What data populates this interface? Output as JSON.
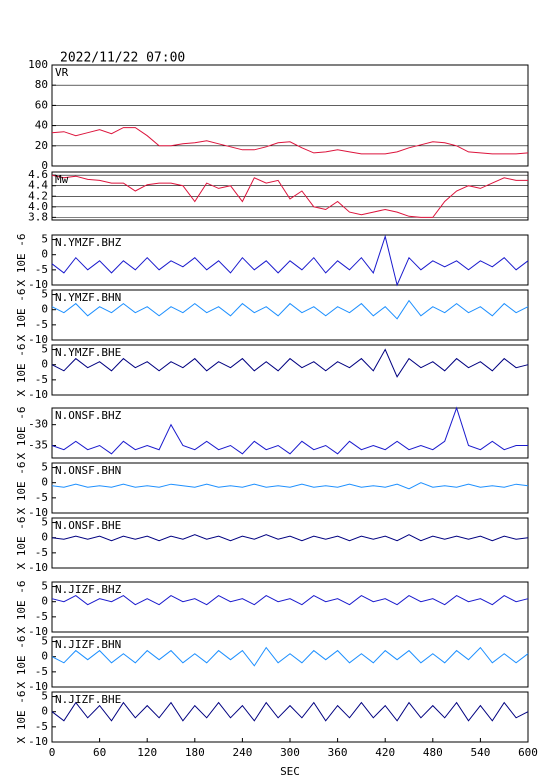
{
  "chart_data": [
    {
      "type": "line",
      "title": "2022/11/22 07:00",
      "label": "VR",
      "xlim": [
        0,
        600
      ],
      "ylim": [
        0,
        100
      ],
      "yticks": [
        0,
        20,
        40,
        60,
        80,
        100
      ],
      "grid": true,
      "x": [
        0,
        15,
        30,
        45,
        60,
        75,
        90,
        105,
        120,
        135,
        150,
        165,
        180,
        195,
        210,
        225,
        240,
        255,
        270,
        285,
        300,
        315,
        330,
        345,
        360,
        375,
        390,
        405,
        420,
        435,
        450,
        465,
        480,
        495,
        510,
        525,
        540,
        555,
        570,
        585,
        600
      ],
      "series": [
        {
          "color": "#dc143c",
          "values": [
            33,
            34,
            30,
            33,
            36,
            32,
            38,
            38,
            30,
            20,
            20,
            22,
            23,
            25,
            22,
            19,
            16,
            16,
            19,
            23,
            24,
            18,
            13,
            14,
            16,
            14,
            12,
            12,
            12,
            14,
            18,
            21,
            24,
            23,
            20,
            14,
            13,
            12,
            12,
            12,
            13
          ]
        }
      ]
    },
    {
      "type": "line",
      "label": "Mw",
      "xlim": [
        0,
        600
      ],
      "ylim": [
        3.75,
        4.66
      ],
      "yticks": [
        3.8,
        {
          "value": 4,
          "label": "4.0"
        },
        4.2,
        4.4,
        4.6
      ],
      "grid": true,
      "x": [
        0,
        15,
        30,
        45,
        60,
        75,
        90,
        105,
        120,
        135,
        150,
        165,
        180,
        195,
        210,
        225,
        240,
        255,
        270,
        285,
        300,
        315,
        330,
        345,
        360,
        375,
        390,
        405,
        420,
        435,
        450,
        465,
        480,
        495,
        510,
        525,
        540,
        555,
        570,
        585,
        600
      ],
      "series": [
        {
          "color": "#dc143c",
          "values": [
            4.6,
            4.55,
            4.58,
            4.52,
            4.5,
            4.45,
            4.45,
            4.3,
            4.42,
            4.45,
            4.45,
            4.4,
            4.1,
            4.45,
            4.35,
            4.4,
            4.1,
            4.55,
            4.45,
            4.5,
            4.15,
            4.3,
            4.0,
            3.95,
            4.1,
            3.9,
            3.85,
            3.9,
            3.95,
            3.9,
            3.82,
            3.8,
            3.8,
            4.1,
            4.3,
            4.4,
            4.35,
            4.45,
            4.55,
            4.5,
            4.5
          ]
        }
      ]
    },
    {
      "type": "line",
      "label": "N.YMZF.BHZ",
      "ylabel": "X 10E -6",
      "xlim": [
        0,
        600
      ],
      "ylim": [
        -10,
        6.5
      ],
      "yticks": [
        -10,
        -5,
        0,
        5
      ],
      "grid": false,
      "x": [
        0,
        15,
        30,
        45,
        60,
        75,
        90,
        105,
        120,
        135,
        150,
        165,
        180,
        195,
        210,
        225,
        240,
        255,
        270,
        285,
        300,
        315,
        330,
        345,
        360,
        375,
        390,
        405,
        420,
        435,
        450,
        465,
        480,
        495,
        510,
        525,
        540,
        555,
        570,
        585,
        600
      ],
      "series": [
        {
          "color": "#1a1acd",
          "values": [
            -3,
            -6,
            -1,
            -5,
            -2,
            -6,
            -2,
            -5,
            -1,
            -5,
            -2,
            -4,
            -1,
            -5,
            -2,
            -6,
            -1,
            -5,
            -2,
            -6,
            -2,
            -5,
            -1,
            -6,
            -2,
            -5,
            -1,
            -6,
            6,
            -10,
            -1,
            -5,
            -2,
            -4,
            -2,
            -5,
            -2,
            -4,
            -1,
            -5,
            -2
          ]
        }
      ]
    },
    {
      "type": "line",
      "label": "N.YMZF.BHN",
      "ylabel": "X 10E -6",
      "xlim": [
        0,
        600
      ],
      "ylim": [
        -10,
        6.5
      ],
      "yticks": [
        -10,
        -5,
        0,
        5
      ],
      "grid": false,
      "x": [
        0,
        15,
        30,
        45,
        60,
        75,
        90,
        105,
        120,
        135,
        150,
        165,
        180,
        195,
        210,
        225,
        240,
        255,
        270,
        285,
        300,
        315,
        330,
        345,
        360,
        375,
        390,
        405,
        420,
        435,
        450,
        465,
        480,
        495,
        510,
        525,
        540,
        555,
        570,
        585,
        600
      ],
      "series": [
        {
          "color": "#1e90ff",
          "values": [
            1,
            -1,
            2,
            -2,
            1,
            -1,
            2,
            -1,
            1,
            -2,
            1,
            -1,
            2,
            -1,
            1,
            -2,
            2,
            -1,
            1,
            -2,
            2,
            -1,
            1,
            -2,
            1,
            -1,
            2,
            -2,
            1,
            -3,
            3,
            -2,
            1,
            -1,
            2,
            -1,
            1,
            -2,
            2,
            -1,
            1
          ]
        }
      ]
    },
    {
      "type": "line",
      "label": "N.YMZF.BHE",
      "ylabel": "X 10E -6",
      "xlim": [
        0,
        600
      ],
      "ylim": [
        -10,
        6.5
      ],
      "yticks": [
        -10,
        -5,
        0,
        5
      ],
      "grid": false,
      "x": [
        0,
        15,
        30,
        45,
        60,
        75,
        90,
        105,
        120,
        135,
        150,
        165,
        180,
        195,
        210,
        225,
        240,
        255,
        270,
        285,
        300,
        315,
        330,
        345,
        360,
        375,
        390,
        405,
        420,
        435,
        450,
        465,
        480,
        495,
        510,
        525,
        540,
        555,
        570,
        585,
        600
      ],
      "series": [
        {
          "color": "#000080",
          "values": [
            0,
            -2,
            2,
            -1,
            1,
            -2,
            2,
            -1,
            1,
            -2,
            1,
            -1,
            2,
            -2,
            1,
            -1,
            2,
            -2,
            1,
            -2,
            2,
            -1,
            1,
            -2,
            1,
            -1,
            2,
            -2,
            5,
            -4,
            2,
            -1,
            1,
            -2,
            2,
            -1,
            1,
            -2,
            2,
            -1,
            0
          ]
        }
      ]
    },
    {
      "type": "line",
      "label": "N.ONSF.BHZ",
      "ylabel": "X 10E -6",
      "xlim": [
        0,
        600
      ],
      "ylim": [
        -38,
        -26
      ],
      "yticks": [
        -35,
        -30
      ],
      "grid": false,
      "x": [
        0,
        15,
        30,
        45,
        60,
        75,
        90,
        105,
        120,
        135,
        150,
        165,
        180,
        195,
        210,
        225,
        240,
        255,
        270,
        285,
        300,
        315,
        330,
        345,
        360,
        375,
        390,
        405,
        420,
        435,
        450,
        465,
        480,
        495,
        510,
        525,
        540,
        555,
        570,
        585,
        600
      ],
      "series": [
        {
          "color": "#1a1acd",
          "values": [
            -35,
            -36,
            -34,
            -36,
            -35,
            -37,
            -34,
            -36,
            -35,
            -36,
            -30,
            -35,
            -36,
            -34,
            -36,
            -35,
            -37,
            -34,
            -36,
            -35,
            -37,
            -34,
            -36,
            -35,
            -37,
            -34,
            -36,
            -35,
            -36,
            -34,
            -36,
            -35,
            -36,
            -34,
            -26,
            -35,
            -36,
            -34,
            -36,
            -35,
            -35
          ]
        }
      ]
    },
    {
      "type": "line",
      "label": "N.ONSF.BHN",
      "ylabel": "X 10E -6",
      "xlim": [
        0,
        600
      ],
      "ylim": [
        -10,
        6.5
      ],
      "yticks": [
        -10,
        -5,
        0,
        5
      ],
      "grid": false,
      "x": [
        0,
        15,
        30,
        45,
        60,
        75,
        90,
        105,
        120,
        135,
        150,
        165,
        180,
        195,
        210,
        225,
        240,
        255,
        270,
        285,
        300,
        315,
        330,
        345,
        360,
        375,
        390,
        405,
        420,
        435,
        450,
        465,
        480,
        495,
        510,
        525,
        540,
        555,
        570,
        585,
        600
      ],
      "series": [
        {
          "color": "#1e90ff",
          "values": [
            -1,
            -1.5,
            -0.5,
            -1.5,
            -1,
            -1.5,
            -0.5,
            -1.5,
            -1,
            -1.5,
            -0.5,
            -1,
            -1.5,
            -0.5,
            -1.5,
            -1,
            -1.5,
            -0.5,
            -1.5,
            -1,
            -1.5,
            -0.5,
            -1.5,
            -1,
            -1.5,
            -0.5,
            -1.5,
            -1,
            -1.5,
            -0.5,
            -2,
            0,
            -1.5,
            -1,
            -1.5,
            -0.5,
            -1.5,
            -1,
            -1.5,
            -0.5,
            -1
          ]
        }
      ]
    },
    {
      "type": "line",
      "label": "N.ONSF.BHE",
      "ylabel": "X 10E -6",
      "xlim": [
        0,
        600
      ],
      "ylim": [
        -10,
        6.5
      ],
      "yticks": [
        -10,
        -5,
        0,
        5
      ],
      "grid": false,
      "x": [
        0,
        15,
        30,
        45,
        60,
        75,
        90,
        105,
        120,
        135,
        150,
        165,
        180,
        195,
        210,
        225,
        240,
        255,
        270,
        285,
        300,
        315,
        330,
        345,
        360,
        375,
        390,
        405,
        420,
        435,
        450,
        465,
        480,
        495,
        510,
        525,
        540,
        555,
        570,
        585,
        600
      ],
      "series": [
        {
          "color": "#000080",
          "values": [
            0,
            -0.5,
            0.5,
            -0.5,
            0.5,
            -1,
            0.5,
            -0.5,
            0.5,
            -1,
            0.5,
            -0.5,
            1,
            -0.5,
            0.5,
            -1,
            0.5,
            -0.5,
            1,
            -0.5,
            0.5,
            -1,
            0.5,
            -0.5,
            0.5,
            -1,
            0.5,
            -0.5,
            0.5,
            -1,
            1,
            -1,
            0.5,
            -0.5,
            0.5,
            -0.5,
            0.5,
            -1,
            0.5,
            -0.5,
            0
          ]
        }
      ]
    },
    {
      "type": "line",
      "label": "N.JIZF.BHZ",
      "ylabel": "X 10E -6",
      "xlim": [
        0,
        600
      ],
      "ylim": [
        -10,
        6.5
      ],
      "yticks": [
        -10,
        -5,
        0,
        5
      ],
      "grid": false,
      "x": [
        0,
        15,
        30,
        45,
        60,
        75,
        90,
        105,
        120,
        135,
        150,
        165,
        180,
        195,
        210,
        225,
        240,
        255,
        270,
        285,
        300,
        315,
        330,
        345,
        360,
        375,
        390,
        405,
        420,
        435,
        450,
        465,
        480,
        495,
        510,
        525,
        540,
        555,
        570,
        585,
        600
      ],
      "series": [
        {
          "color": "#1a1acd",
          "values": [
            1,
            0,
            2,
            -1,
            1,
            0,
            2,
            -1,
            1,
            -1,
            2,
            0,
            1,
            -1,
            2,
            0,
            1,
            -1,
            2,
            0,
            1,
            -1,
            2,
            0,
            1,
            -1,
            2,
            0,
            1,
            -1,
            2,
            0,
            1,
            -1,
            2,
            0,
            1,
            -1,
            2,
            0,
            1
          ]
        }
      ]
    },
    {
      "type": "line",
      "label": "N.JIZF.BHN",
      "ylabel": "X 10E -6",
      "xlim": [
        0,
        600
      ],
      "ylim": [
        -10,
        6.5
      ],
      "yticks": [
        -10,
        -5,
        0,
        5
      ],
      "grid": false,
      "x": [
        0,
        15,
        30,
        45,
        60,
        75,
        90,
        105,
        120,
        135,
        150,
        165,
        180,
        195,
        210,
        225,
        240,
        255,
        270,
        285,
        300,
        315,
        330,
        345,
        360,
        375,
        390,
        405,
        420,
        435,
        450,
        465,
        480,
        495,
        510,
        525,
        540,
        555,
        570,
        585,
        600
      ],
      "series": [
        {
          "color": "#1e90ff",
          "values": [
            0,
            -2,
            2,
            -1,
            2,
            -2,
            1,
            -2,
            2,
            -1,
            2,
            -2,
            1,
            -2,
            2,
            -1,
            2,
            -3,
            3,
            -2,
            1,
            -2,
            2,
            -1,
            2,
            -2,
            1,
            -2,
            2,
            -1,
            2,
            -2,
            1,
            -2,
            2,
            -1,
            3,
            -2,
            1,
            -2,
            1
          ]
        }
      ]
    },
    {
      "type": "line",
      "label": "N.JIZF.BHE",
      "ylabel": "X 10E -6",
      "xlabel": "SEC",
      "xlim": [
        0,
        600
      ],
      "xticks": [
        0,
        60,
        120,
        180,
        240,
        300,
        360,
        420,
        480,
        540,
        600
      ],
      "ylim": [
        -10,
        6.5
      ],
      "yticks": [
        -10,
        -5,
        0,
        5
      ],
      "grid": false,
      "x": [
        0,
        15,
        30,
        45,
        60,
        75,
        90,
        105,
        120,
        135,
        150,
        165,
        180,
        195,
        210,
        225,
        240,
        255,
        270,
        285,
        300,
        315,
        330,
        345,
        360,
        375,
        390,
        405,
        420,
        435,
        450,
        465,
        480,
        495,
        510,
        525,
        540,
        555,
        570,
        585,
        600
      ],
      "series": [
        {
          "color": "#000080",
          "values": [
            0,
            -3,
            3,
            -2,
            2,
            -3,
            3,
            -2,
            2,
            -2,
            3,
            -3,
            2,
            -2,
            3,
            -2,
            2,
            -3,
            3,
            -2,
            2,
            -2,
            3,
            -3,
            2,
            -2,
            3,
            -2,
            2,
            -3,
            3,
            -2,
            2,
            -2,
            3,
            -3,
            2,
            -3,
            3,
            -2,
            0
          ]
        }
      ]
    }
  ]
}
